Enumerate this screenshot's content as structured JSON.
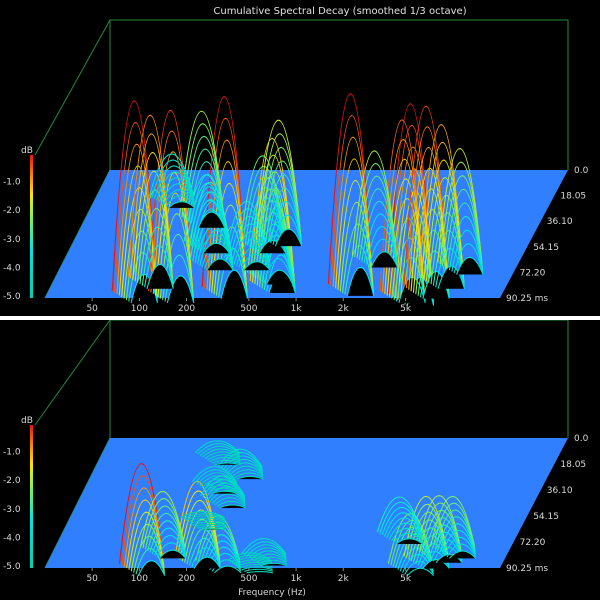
{
  "chart_data": [
    {
      "type": "waterfall-3d",
      "title": "Cumulative Spectral Decay (smoothed 1/3 octave)",
      "xlabel": "",
      "x_scale": "log",
      "x_ticks": [
        "50",
        "100",
        "200",
        "500",
        "1k",
        "2k",
        "5k"
      ],
      "x_tick_values": [
        50,
        100,
        200,
        500,
        1000,
        2000,
        5000
      ],
      "z_label": "dB",
      "z_ticks": [
        "-1.0",
        "-2.0",
        "-3.0",
        "-4.0",
        "-5.0"
      ],
      "z_tick_values": [
        -1,
        -2,
        -3,
        -4,
        -5
      ],
      "zlim": [
        -5,
        0
      ],
      "time_ticks": [
        "0.0",
        "18.05",
        "36.10",
        "54.15",
        "72.20",
        "90.25 ms"
      ],
      "time_tick_values": [
        0,
        18.05,
        36.1,
        54.15,
        72.2,
        90.25
      ],
      "floor_color": "#2f7fff",
      "peaks": [
        {
          "f": 75,
          "t": 72,
          "h": 0.22
        },
        {
          "f": 88,
          "t": 5,
          "h": 1.0
        },
        {
          "f": 100,
          "t": 15,
          "h": 0.85
        },
        {
          "f": 135,
          "t": 58,
          "h": 0.55
        },
        {
          "f": 150,
          "t": 5,
          "h": 0.95
        },
        {
          "f": 175,
          "t": 40,
          "h": 0.35
        },
        {
          "f": 210,
          "t": 28,
          "h": 0.4
        },
        {
          "f": 320,
          "t": 8,
          "h": 1.0
        },
        {
          "f": 360,
          "t": 28,
          "h": 0.3
        },
        {
          "f": 400,
          "t": 40,
          "h": 0.45
        },
        {
          "f": 480,
          "t": 45,
          "h": 0.6
        },
        {
          "f": 560,
          "t": 18,
          "h": 0.5
        },
        {
          "f": 620,
          "t": 12,
          "h": 0.75
        },
        {
          "f": 2000,
          "t": 10,
          "h": 1.0
        },
        {
          "f": 2300,
          "t": 30,
          "h": 0.55
        },
        {
          "f": 4500,
          "t": 5,
          "h": 0.9
        },
        {
          "f": 5200,
          "t": 3,
          "h": 1.0
        },
        {
          "f": 6200,
          "t": 8,
          "h": 0.95
        },
        {
          "f": 7200,
          "t": 15,
          "h": 0.8
        },
        {
          "f": 8500,
          "t": 25,
          "h": 0.6
        }
      ]
    },
    {
      "type": "waterfall-3d",
      "title": "",
      "xlabel": "Frequency (Hz)",
      "x_scale": "log",
      "x_ticks": [
        "50",
        "100",
        "200",
        "500",
        "1k",
        "2k",
        "5k"
      ],
      "x_tick_values": [
        50,
        100,
        200,
        500,
        1000,
        2000,
        5000
      ],
      "z_label": "dB",
      "z_ticks": [
        "-1.0",
        "-2.0",
        "-3.0",
        "-4.0",
        "-5.0"
      ],
      "z_tick_values": [
        -1,
        -2,
        -3,
        -4,
        -5
      ],
      "zlim": [
        -5,
        0
      ],
      "time_ticks": [
        "0.0",
        "18.05",
        "36.10",
        "54.15",
        "72.20",
        "90.25 ms"
      ],
      "time_tick_values": [
        0,
        18.05,
        36.1,
        54.15,
        72.2,
        90.25
      ],
      "floor_color": "#2f7fff",
      "peaks": [
        {
          "f": 100,
          "t": 3,
          "h": 1.0
        },
        {
          "f": 120,
          "t": 15,
          "h": 0.55
        },
        {
          "f": 135,
          "t": 80,
          "h": 0.12
        },
        {
          "f": 160,
          "t": 60,
          "h": 0.15
        },
        {
          "f": 175,
          "t": 35,
          "h": 0.06
        },
        {
          "f": 200,
          "t": 50,
          "h": 0.2
        },
        {
          "f": 210,
          "t": 70,
          "h": 0.18
        },
        {
          "f": 215,
          "t": 8,
          "h": 0.75
        },
        {
          "f": 300,
          "t": 5,
          "h": 0.45
        },
        {
          "f": 480,
          "t": 5,
          "h": 0.08
        },
        {
          "f": 560,
          "t": 10,
          "h": 0.15
        },
        {
          "f": 3500,
          "t": 25,
          "h": 0.35
        },
        {
          "f": 5200,
          "t": 3,
          "h": 0.5
        },
        {
          "f": 6200,
          "t": 8,
          "h": 0.6
        },
        {
          "f": 7200,
          "t": 12,
          "h": 0.55
        },
        {
          "f": 8500,
          "t": 15,
          "h": 0.5
        }
      ]
    }
  ]
}
